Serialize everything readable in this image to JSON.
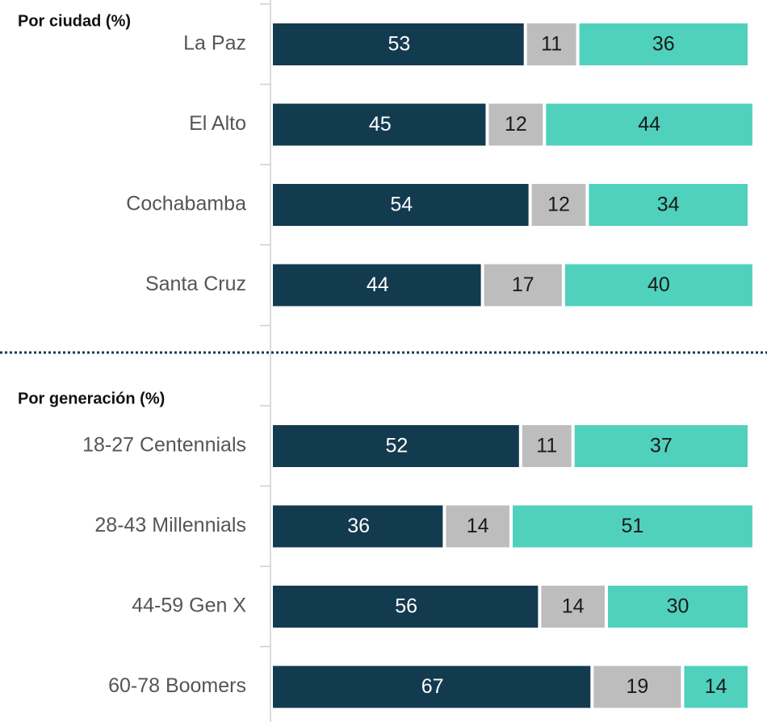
{
  "chart_data": [
    {
      "type": "bar",
      "orientation": "horizontal",
      "stacked": true,
      "title": "Por ciudad (%)",
      "categories": [
        "La Paz",
        "El Alto",
        "Cochabamba",
        "Santa Cruz"
      ],
      "xlim": [
        0,
        100
      ],
      "series": [
        {
          "color": "#133b4f",
          "label_color": "#ffffff",
          "values": [
            53,
            45,
            54,
            44
          ]
        },
        {
          "color": "#bdbdbd",
          "label_color": "#1a1a1a",
          "values": [
            11,
            12,
            12,
            17
          ]
        },
        {
          "color": "#4fd1bd",
          "label_color": "#1a1a1a",
          "values": [
            36,
            44,
            34,
            40
          ]
        }
      ]
    },
    {
      "type": "bar",
      "orientation": "horizontal",
      "stacked": true,
      "title": "Por generación (%)",
      "categories": [
        "18-27 Centennials",
        "28-43 Millennials",
        "44-59 Gen X",
        "60-78 Boomers"
      ],
      "xlim": [
        0,
        100
      ],
      "series": [
        {
          "color": "#133b4f",
          "label_color": "#ffffff",
          "values": [
            52,
            36,
            56,
            67
          ]
        },
        {
          "color": "#bdbdbd",
          "label_color": "#1a1a1a",
          "values": [
            11,
            14,
            14,
            19
          ]
        },
        {
          "color": "#4fd1bd",
          "label_color": "#1a1a1a",
          "values": [
            37,
            51,
            30,
            14
          ]
        }
      ]
    }
  ]
}
